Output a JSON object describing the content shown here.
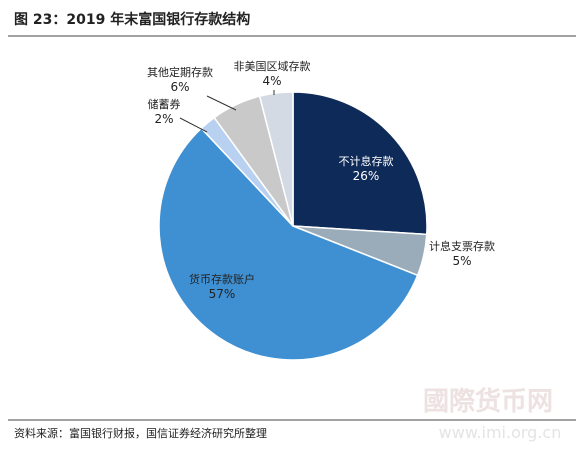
{
  "chart_data": {
    "type": "pie",
    "title": "图 23：2019 年末富国银行存款结构",
    "categories": [
      "不计息存款",
      "计息支票存款",
      "货币存款账户",
      "储蓄券",
      "其他定期存款",
      "非美国区域存款"
    ],
    "values": [
      26,
      5,
      57,
      2,
      6,
      4
    ],
    "value_labels": [
      "26%",
      "5%",
      "57%",
      "2%",
      "6%",
      "4%"
    ],
    "colors": [
      "#0e2a58",
      "#9aabb9",
      "#3f90d2",
      "#b9d1f0",
      "#c9c9c9",
      "#d3dae3"
    ],
    "source": "资料来源：富国银行财报，国信证券经济研究所整理",
    "watermark": [
      "國際货币网",
      "www.imi.org.cn"
    ]
  }
}
